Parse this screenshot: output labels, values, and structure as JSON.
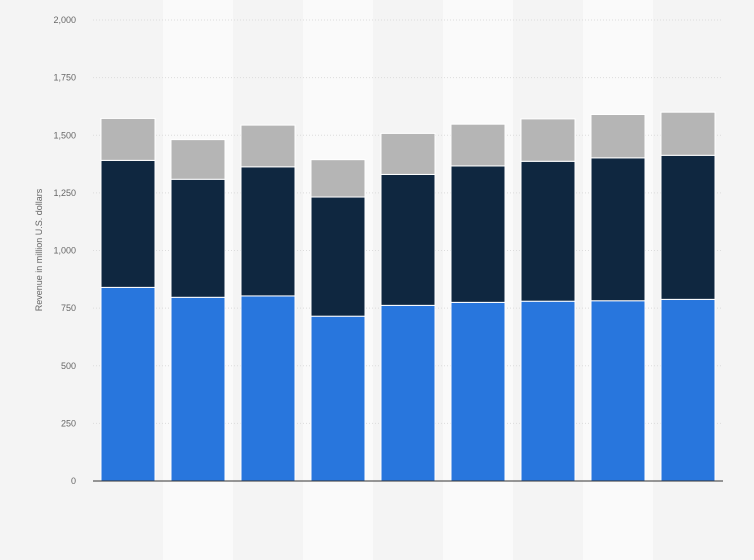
{
  "chart_data": {
    "type": "bar",
    "stacked": true,
    "ylabel": "Revenue in million U.S. dollars",
    "ylim": [
      0,
      2000
    ],
    "yticks": [
      0,
      250,
      500,
      750,
      1000,
      1250,
      1500,
      1750,
      2000
    ],
    "ytick_labels": [
      "0",
      "250",
      "500",
      "750",
      "1,000",
      "1,250",
      "1,500",
      "1,750",
      "2,000"
    ],
    "grid": true,
    "categories": [
      "",
      "",
      "",
      "",
      "",
      "",
      "",
      "",
      ""
    ],
    "series": [
      {
        "values": [
          840,
          797,
          803,
          715,
          762,
          775,
          780,
          782,
          788
        ],
        "color": "#2876dd"
      },
      {
        "values": [
          551,
          512,
          560,
          517,
          568,
          592,
          607,
          620,
          625
        ],
        "color": "#0f2740"
      },
      {
        "values": [
          182,
          172,
          181,
          162,
          178,
          181,
          184,
          188,
          187
        ],
        "color": "#b5b5b5"
      }
    ]
  }
}
